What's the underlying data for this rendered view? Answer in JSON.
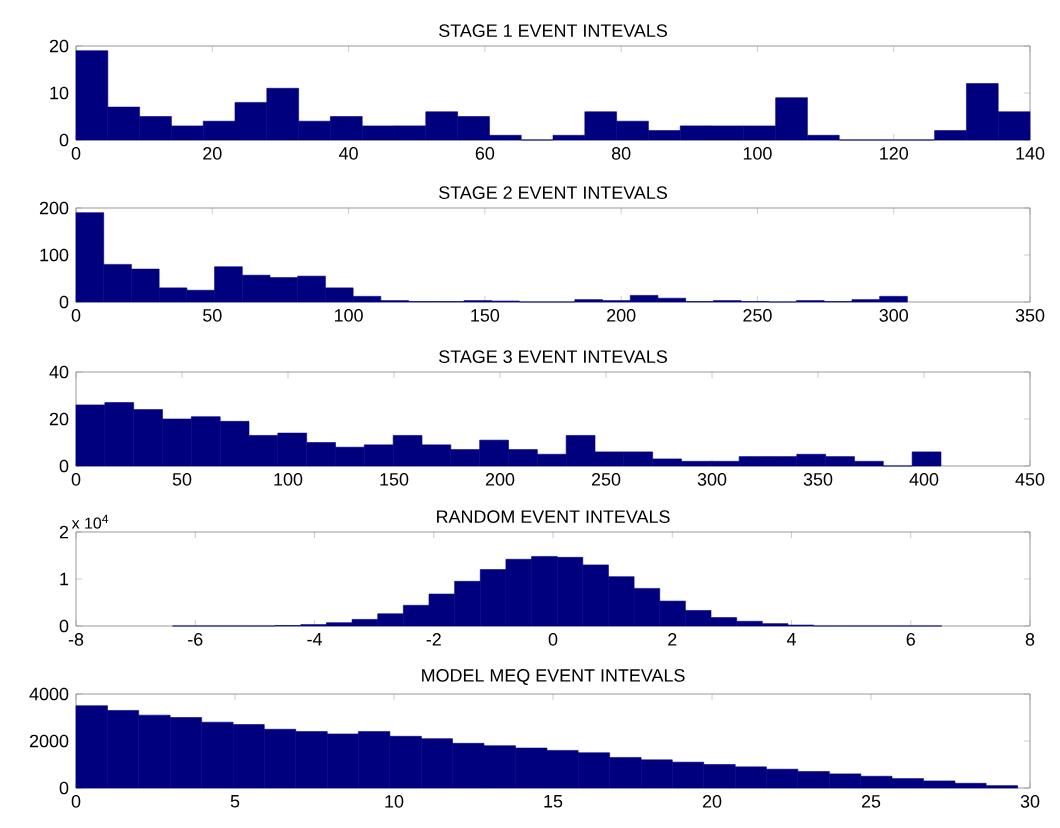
{
  "chart_data": [
    {
      "type": "histogram",
      "title": "STAGE 1 EVENT INTEVALS",
      "color": "#00007f",
      "xlim": [
        0,
        140
      ],
      "ylim": [
        0,
        20
      ],
      "xticks": [
        0,
        20,
        40,
        60,
        80,
        100,
        120,
        140
      ],
      "yticks": [
        0,
        10,
        20
      ],
      "bins": [
        0,
        4.67,
        9.33,
        14,
        18.67,
        23.33,
        28,
        32.67,
        37.33,
        42,
        46.67,
        51.33,
        56,
        60.67,
        65.33,
        70,
        74.67,
        79.33,
        84,
        88.67,
        93.33,
        98,
        102.67,
        107.33,
        112,
        116.67,
        121.33,
        126,
        130.67,
        135.33,
        140
      ],
      "values": [
        19,
        7,
        5,
        3,
        4,
        8,
        11,
        4,
        5,
        3,
        3,
        6,
        5,
        1,
        0,
        1,
        6,
        4,
        2,
        3,
        3,
        3,
        9,
        1,
        0,
        0,
        0,
        2,
        12,
        6
      ]
    },
    {
      "type": "histogram",
      "title": "STAGE 2 EVENT INTEVALS",
      "color": "#00007f",
      "xlim": [
        0,
        350
      ],
      "ylim": [
        0,
        200
      ],
      "xticks": [
        0,
        50,
        100,
        150,
        200,
        250,
        300,
        350
      ],
      "yticks": [
        0,
        100,
        200
      ],
      "bins": [
        0,
        10.17,
        20.33,
        30.5,
        40.67,
        50.83,
        61,
        71.17,
        81.33,
        91.5,
        101.67,
        111.83,
        122,
        132.17,
        142.33,
        152.5,
        162.67,
        172.83,
        183,
        193.17,
        203.33,
        213.5,
        223.67,
        233.83,
        244,
        254.17,
        264.33,
        274.5,
        284.67,
        294.83,
        305
      ],
      "values": [
        190,
        80,
        70,
        30,
        25,
        75,
        57,
        52,
        55,
        30,
        12,
        3,
        1,
        1,
        3,
        2,
        0,
        0,
        5,
        3,
        14,
        8,
        1,
        3,
        1,
        0,
        3,
        1,
        5,
        12
      ]
    },
    {
      "type": "histogram",
      "title": "STAGE 3 EVENT INTEVALS",
      "color": "#00007f",
      "xlim": [
        0,
        450
      ],
      "ylim": [
        0,
        40
      ],
      "xticks": [
        0,
        50,
        100,
        150,
        200,
        250,
        300,
        350,
        400,
        450
      ],
      "yticks": [
        0,
        20,
        40
      ],
      "bins": [
        0,
        13.6,
        27.2,
        40.8,
        54.4,
        68,
        81.6,
        95.2,
        108.8,
        122.4,
        136,
        149.6,
        163.2,
        176.8,
        190.4,
        204,
        217.6,
        231.2,
        244.8,
        258.4,
        272,
        285.6,
        299.2,
        312.8,
        326.4,
        340,
        353.6,
        367.2,
        380.8,
        394.4,
        408
      ],
      "values": [
        26,
        27,
        24,
        20,
        21,
        19,
        13,
        14,
        10,
        8,
        9,
        13,
        9,
        7,
        11,
        7,
        5,
        13,
        6,
        6,
        3,
        2,
        2,
        4,
        4,
        5,
        4,
        2,
        0,
        6
      ]
    },
    {
      "type": "histogram",
      "title": "RANDOM EVENT INTEVALS",
      "color": "#00007f",
      "xlim": [
        -8,
        8
      ],
      "ylim": [
        0,
        2
      ],
      "xticks": [
        -8,
        -6,
        -4,
        -2,
        0,
        2,
        4,
        6,
        8
      ],
      "yticks": [
        0,
        1,
        2
      ],
      "annotations": [
        "x 10$^{4}$"
      ],
      "bins": [
        -6.38,
        -5.95,
        -5.52,
        -5.09,
        -4.66,
        -4.23,
        -3.8,
        -3.37,
        -2.94,
        -2.51,
        -2.08,
        -1.65,
        -1.22,
        -0.79,
        -0.36,
        0.07,
        0.5,
        0.93,
        1.36,
        1.79,
        2.22,
        2.65,
        3.08,
        3.51,
        3.94,
        4.37,
        4.8,
        5.23,
        5.66,
        6.09,
        6.52
      ],
      "values": [
        0,
        0,
        0,
        0,
        0.01,
        0.03,
        0.07,
        0.14,
        0.26,
        0.44,
        0.68,
        0.95,
        1.2,
        1.42,
        1.48,
        1.46,
        1.3,
        1.05,
        0.8,
        0.53,
        0.33,
        0.18,
        0.1,
        0.05,
        0.02,
        0,
        0,
        0,
        0,
        0
      ]
    },
    {
      "type": "histogram",
      "title": "MODEL MEQ EVENT INTEVALS",
      "color": "#00007f",
      "xlim": [
        0,
        30
      ],
      "ylim": [
        0,
        4000
      ],
      "xticks": [
        0,
        5,
        10,
        15,
        20,
        25,
        30
      ],
      "yticks": [
        0,
        2000,
        4000
      ],
      "bins": [
        0,
        0.99,
        1.97,
        2.96,
        3.95,
        4.94,
        5.92,
        6.91,
        7.9,
        8.88,
        9.87,
        10.86,
        11.84,
        12.83,
        13.82,
        14.81,
        15.79,
        16.78,
        17.77,
        18.75,
        19.74,
        20.73,
        21.71,
        22.7,
        23.69,
        24.68,
        25.66,
        26.65,
        27.64,
        28.62,
        29.61
      ],
      "values": [
        3500,
        3300,
        3100,
        3000,
        2800,
        2700,
        2500,
        2400,
        2300,
        2400,
        2200,
        2100,
        1900,
        1800,
        1700,
        1600,
        1500,
        1300,
        1200,
        1100,
        1000,
        900,
        800,
        700,
        600,
        500,
        400,
        300,
        200,
        100
      ]
    }
  ]
}
